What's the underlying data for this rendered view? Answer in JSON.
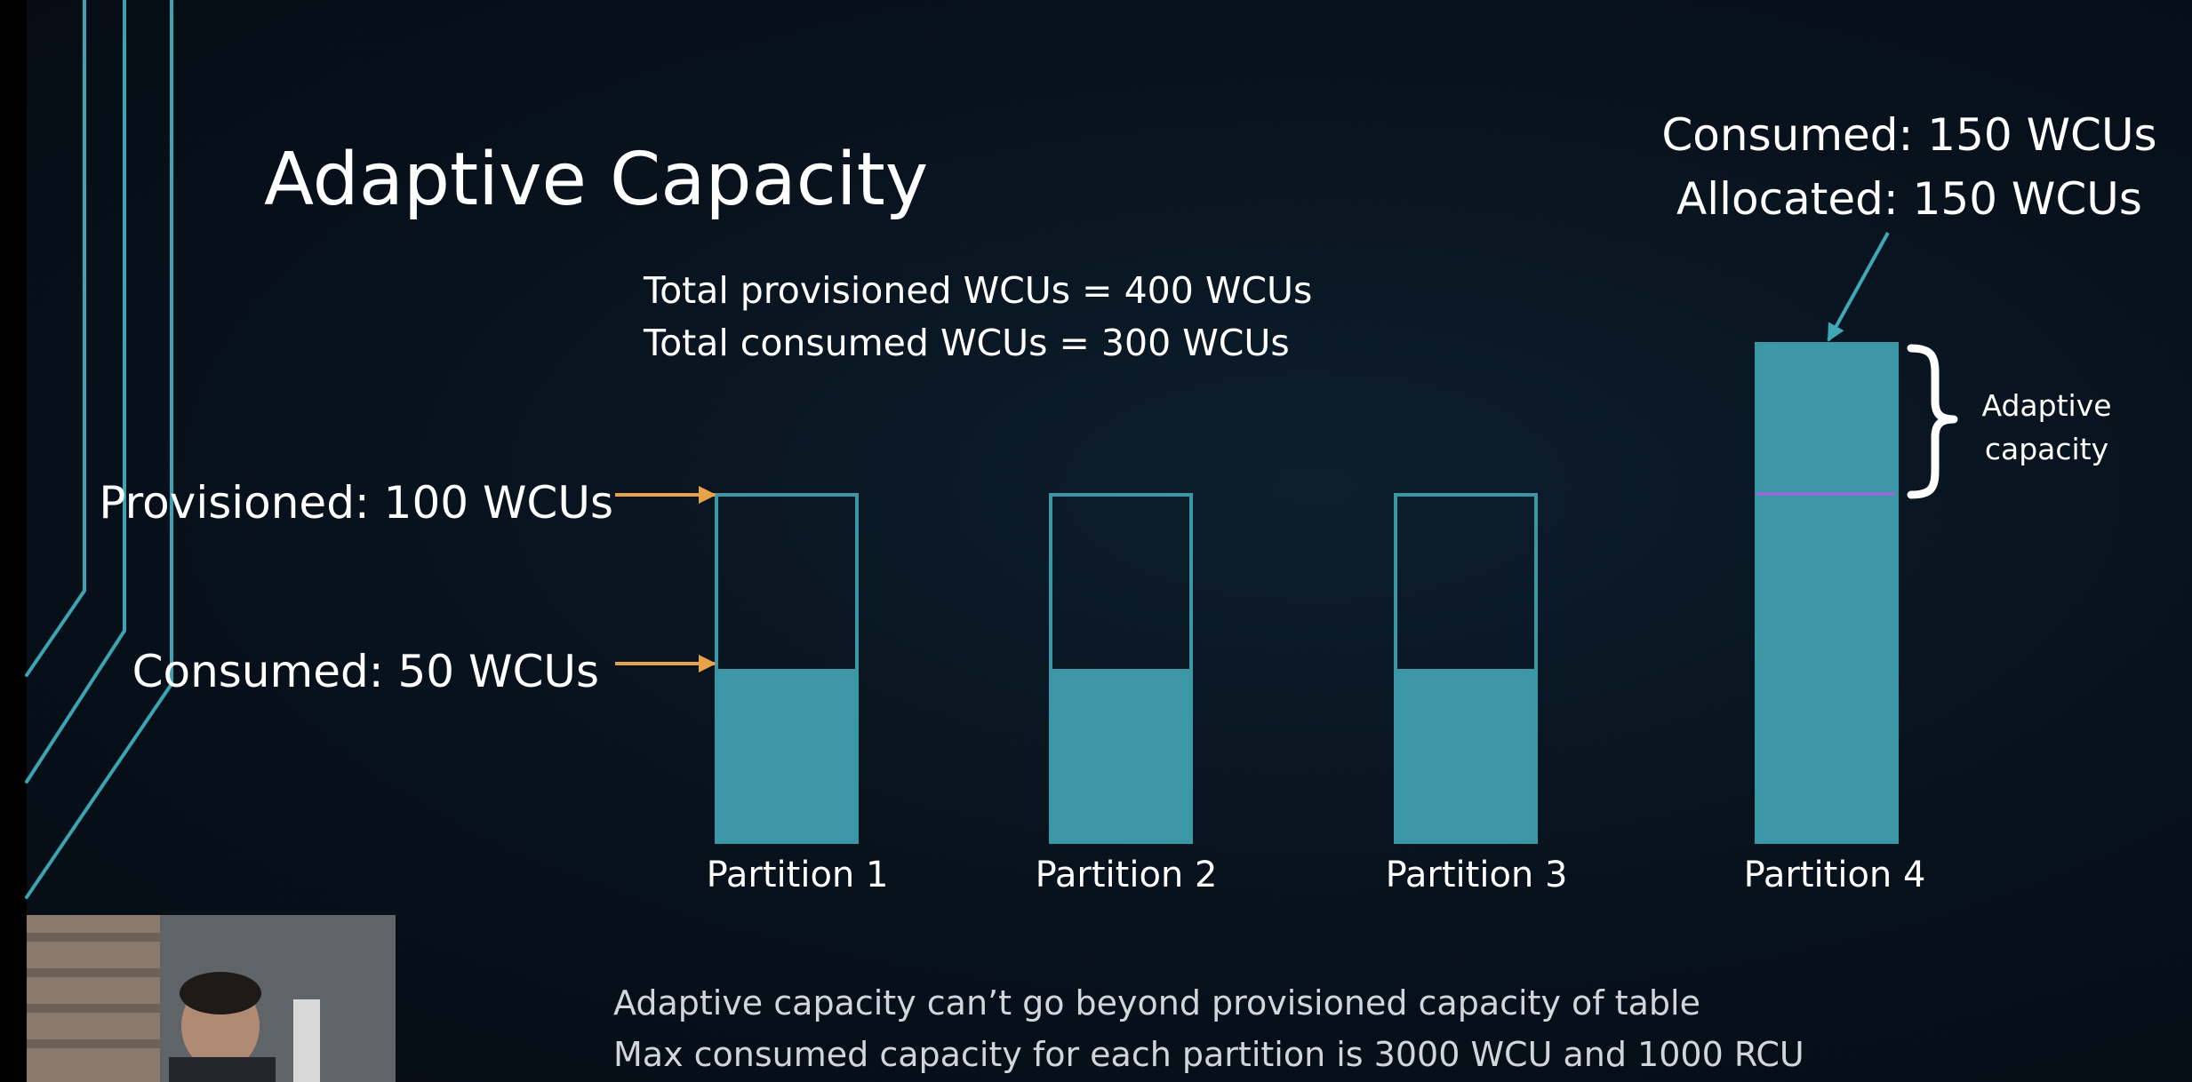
{
  "slide": {
    "title": "Adaptive Capacity",
    "total_provisioned": "Total provisioned WCUs = 400 WCUs",
    "total_consumed": "Total consumed WCUs = 300 WCUs",
    "provisioned_label": "Provisioned: 100 WCUs",
    "consumed_label": "Consumed: 50 WCUs",
    "partition4_consumed": "Consumed: 150 WCUs",
    "partition4_allocated": "Allocated: 150 WCUs",
    "adaptive_capacity_label": "Adaptive capacity",
    "notes": [
      "Adaptive capacity can’t go beyond provisioned capacity of table",
      "Max consumed capacity for each partition is 3000 WCU and 1000 RCU"
    ]
  },
  "partitions": [
    {
      "label": "Partition 1",
      "provisioned": 100,
      "consumed": 50
    },
    {
      "label": "Partition 2",
      "provisioned": 100,
      "consumed": 50
    },
    {
      "label": "Partition 3",
      "provisioned": 100,
      "consumed": 50
    },
    {
      "label": "Partition 4",
      "provisioned": 100,
      "consumed": 150
    }
  ],
  "colors": {
    "bar_fill": "#3d97a6",
    "bar_outline": "#3a97a6",
    "arrow": "#e8a24a",
    "partition_divider": "#8b6fd6"
  }
}
